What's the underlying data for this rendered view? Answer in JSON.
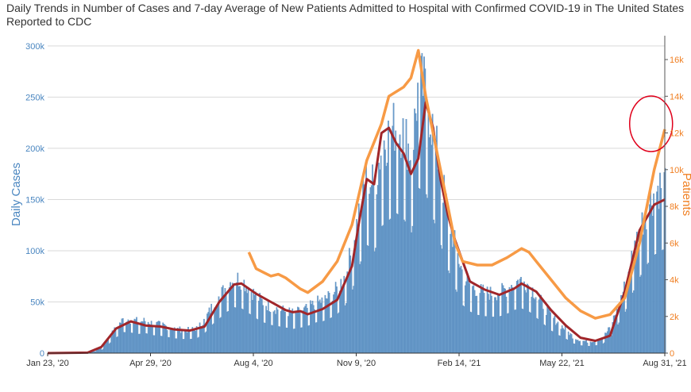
{
  "chart_data": {
    "type": "bar+line",
    "title": "Daily Trends in Number of Cases and 7-day Average of New Patients Admitted to Hospital with Confirmed COVID-19 in The United States Reported to CDC",
    "ylabel_left": "Daily Cases",
    "ylabel_right": "Patients",
    "ylim_left": [
      0,
      310000
    ],
    "ylim_right": [
      0,
      17300
    ],
    "x_range": [
      "2020-01-23",
      "2021-08-31"
    ],
    "x_tick_labels": [
      "Jan 23, '20",
      "Apr 29, '20",
      "Aug 4, '20",
      "Nov 9, '20",
      "Feb 14, '21",
      "May 22, '21",
      "Aug 31, '21"
    ],
    "y_left_tick_labels": [
      "0",
      "50k",
      "100k",
      "150k",
      "200k",
      "250k",
      "300k"
    ],
    "y_left_tick_values": [
      0,
      50000,
      100000,
      150000,
      200000,
      250000,
      300000
    ],
    "y_right_tick_labels": [
      "0",
      "2k",
      "4k",
      "6k",
      "8k",
      "10k",
      "12k",
      "14k",
      "16k"
    ],
    "y_right_tick_values": [
      0,
      2000,
      4000,
      6000,
      8000,
      10000,
      12000,
      14000,
      16000
    ],
    "grid": true,
    "colors": {
      "bars": "#6a9ccb",
      "bar_edge": "#4f84b8",
      "cases_avg_line": "#a0262a",
      "patients_line": "#f79a45",
      "annotation_circle": "#e0001b",
      "left_axis_text": "#4a86c0",
      "right_axis_text": "#f07f22",
      "grid": "#d9d9d9"
    },
    "series": [
      {
        "kind": "bar",
        "axis": "left",
        "note": "Daily Cases (weekly-sampled approximate values)",
        "x": [
          "2020-01-23",
          "2020-03-01",
          "2020-03-14",
          "2020-03-21",
          "2020-03-28",
          "2020-04-04",
          "2020-04-11",
          "2020-04-18",
          "2020-04-25",
          "2020-05-02",
          "2020-05-09",
          "2020-05-16",
          "2020-05-23",
          "2020-05-30",
          "2020-06-06",
          "2020-06-13",
          "2020-06-20",
          "2020-06-27",
          "2020-07-04",
          "2020-07-11",
          "2020-07-18",
          "2020-07-25",
          "2020-08-01",
          "2020-08-08",
          "2020-08-15",
          "2020-08-22",
          "2020-08-29",
          "2020-09-05",
          "2020-09-12",
          "2020-09-19",
          "2020-09-26",
          "2020-10-03",
          "2020-10-10",
          "2020-10-17",
          "2020-10-24",
          "2020-10-31",
          "2020-11-07",
          "2020-11-14",
          "2020-11-21",
          "2020-11-28",
          "2020-12-05",
          "2020-12-12",
          "2020-12-19",
          "2020-12-26",
          "2021-01-02",
          "2021-01-09",
          "2021-01-16",
          "2021-01-23",
          "2021-01-30",
          "2021-02-06",
          "2021-02-13",
          "2021-02-20",
          "2021-02-27",
          "2021-03-06",
          "2021-03-13",
          "2021-03-20",
          "2021-03-27",
          "2021-04-03",
          "2021-04-10",
          "2021-04-17",
          "2021-04-24",
          "2021-05-01",
          "2021-05-08",
          "2021-05-15",
          "2021-05-22",
          "2021-05-29",
          "2021-06-05",
          "2021-06-12",
          "2021-06-19",
          "2021-06-26",
          "2021-07-03",
          "2021-07-10",
          "2021-07-17",
          "2021-07-24",
          "2021-07-31",
          "2021-08-07",
          "2021-08-14",
          "2021-08-21",
          "2021-08-31"
        ],
        "values": [
          0,
          200,
          5000,
          15000,
          25000,
          33000,
          32000,
          30000,
          31000,
          28000,
          27000,
          25000,
          23000,
          22000,
          22000,
          24000,
          32000,
          45000,
          55000,
          65000,
          72000,
          70000,
          62000,
          54000,
          48000,
          44000,
          42000,
          40000,
          38000,
          40000,
          43000,
          48000,
          50000,
          55000,
          62000,
          75000,
          100000,
          140000,
          170000,
          160000,
          200000,
          210000,
          220000,
          210000,
          190000,
          260000,
          250000,
          210000,
          170000,
          130000,
          100000,
          75000,
          65000,
          60000,
          58000,
          57000,
          58000,
          62000,
          68000,
          70000,
          65000,
          55000,
          45000,
          35000,
          28000,
          22000,
          15000,
          12000,
          11000,
          12000,
          15000,
          25000,
          45000,
          65000,
          95000,
          120000,
          140000,
          155000,
          165000
        ]
      },
      {
        "kind": "line",
        "axis": "left",
        "note": "7-day average of daily cases",
        "x": [
          "2020-01-23",
          "2020-03-01",
          "2020-03-14",
          "2020-03-28",
          "2020-04-11",
          "2020-04-25",
          "2020-05-09",
          "2020-05-23",
          "2020-06-06",
          "2020-06-20",
          "2020-07-04",
          "2020-07-18",
          "2020-07-25",
          "2020-08-08",
          "2020-08-22",
          "2020-09-05",
          "2020-09-12",
          "2020-09-19",
          "2020-09-26",
          "2020-10-10",
          "2020-10-24",
          "2020-11-07",
          "2020-11-14",
          "2020-11-21",
          "2020-11-28",
          "2020-12-05",
          "2020-12-12",
          "2020-12-19",
          "2020-12-26",
          "2021-01-02",
          "2021-01-09",
          "2021-01-16",
          "2021-01-23",
          "2021-01-30",
          "2021-02-06",
          "2021-02-13",
          "2021-02-27",
          "2021-03-13",
          "2021-03-27",
          "2021-04-10",
          "2021-04-17",
          "2021-05-01",
          "2021-05-15",
          "2021-05-29",
          "2021-06-12",
          "2021-06-26",
          "2021-07-10",
          "2021-07-24",
          "2021-08-07",
          "2021-08-21",
          "2021-08-31"
        ],
        "values": [
          0,
          500,
          6000,
          24000,
          31000,
          27000,
          26000,
          23000,
          22000,
          26000,
          50000,
          67000,
          68000,
          58000,
          50000,
          42000,
          40000,
          41000,
          38000,
          43000,
          52000,
          85000,
          130000,
          170000,
          165000,
          215000,
          220000,
          205000,
          195000,
          175000,
          190000,
          245000,
          220000,
          170000,
          135000,
          110000,
          70000,
          62000,
          57000,
          63000,
          68000,
          60000,
          42000,
          27000,
          15000,
          12000,
          17000,
          60000,
          120000,
          145000,
          150000
        ]
      },
      {
        "kind": "line",
        "axis": "right",
        "note": "7-day average of new patients admitted (Patients)",
        "x": [
          "2020-08-01",
          "2020-08-08",
          "2020-08-15",
          "2020-08-22",
          "2020-08-29",
          "2020-09-05",
          "2020-09-12",
          "2020-09-19",
          "2020-09-26",
          "2020-10-10",
          "2020-10-24",
          "2020-11-07",
          "2020-11-21",
          "2020-12-05",
          "2020-12-12",
          "2020-12-26",
          "2021-01-02",
          "2021-01-09",
          "2021-01-16",
          "2021-01-23",
          "2021-01-30",
          "2021-02-06",
          "2021-02-13",
          "2021-02-20",
          "2021-03-06",
          "2021-03-20",
          "2021-04-03",
          "2021-04-17",
          "2021-04-24",
          "2021-05-01",
          "2021-05-15",
          "2021-05-29",
          "2021-06-12",
          "2021-06-26",
          "2021-07-10",
          "2021-07-24",
          "2021-08-07",
          "2021-08-21",
          "2021-08-31"
        ],
        "values": [
          5500,
          4600,
          4400,
          4200,
          4300,
          4100,
          3800,
          3500,
          3300,
          3900,
          5000,
          7000,
          10500,
          12500,
          14000,
          14500,
          15000,
          16500,
          14000,
          12000,
          10000,
          8000,
          6000,
          5000,
          4800,
          4800,
          5200,
          5700,
          5500,
          5000,
          4000,
          3000,
          2300,
          1900,
          2100,
          3000,
          6000,
          10000,
          12200
        ]
      }
    ],
    "annotations": [
      {
        "type": "circle",
        "note": "highlights latest rise of Patients line near 12k",
        "x": "2021-08-21",
        "y_right": 12500
      }
    ]
  }
}
